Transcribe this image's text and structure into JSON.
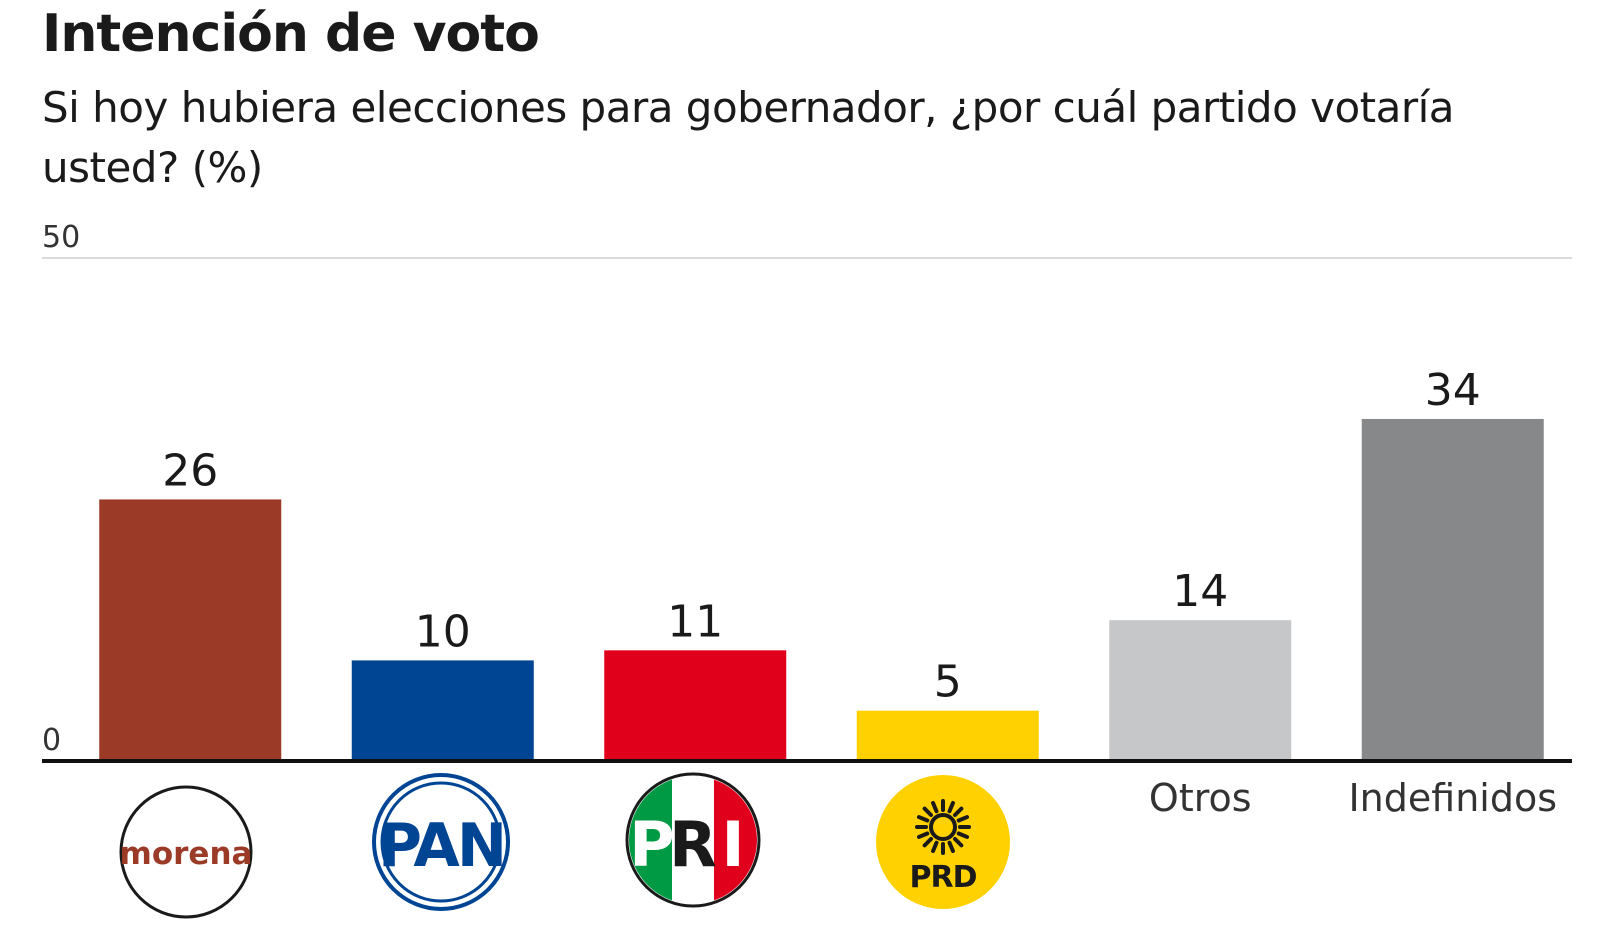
{
  "header": {
    "title": "Intención de voto",
    "subtitle": "Si hoy hubiera elecciones para gobernador, ¿por cuál partido votaría usted? (%)"
  },
  "logos": {
    "morena": "morena",
    "pan": "PAN",
    "pri_letters": [
      "P",
      "R",
      "I"
    ],
    "prd": "PRD"
  },
  "chart_data": {
    "type": "bar",
    "title": "Intención de voto",
    "subtitle": "Si hoy hubiera elecciones para gobernador, ¿por cuál partido votaría usted? (%)",
    "categories": [
      "Morena",
      "PAN",
      "PRI",
      "PRD",
      "Otros",
      "Indefinidos"
    ],
    "category_labels": [
      "",
      "",
      "",
      "",
      "Otros",
      "Indefinidos"
    ],
    "category_icons": [
      "morena-logo",
      "pan-logo",
      "pri-logo",
      "prd-logo",
      "",
      ""
    ],
    "values": [
      26,
      10,
      11,
      5,
      14,
      34
    ],
    "colors": [
      "#9b3a26",
      "#004494",
      "#e0001b",
      "#ffd100",
      "#c6c7c9",
      "#87888a"
    ],
    "ylim": [
      0,
      50
    ],
    "yticks": [
      "0",
      "50"
    ],
    "grid": true,
    "legend": "none"
  }
}
